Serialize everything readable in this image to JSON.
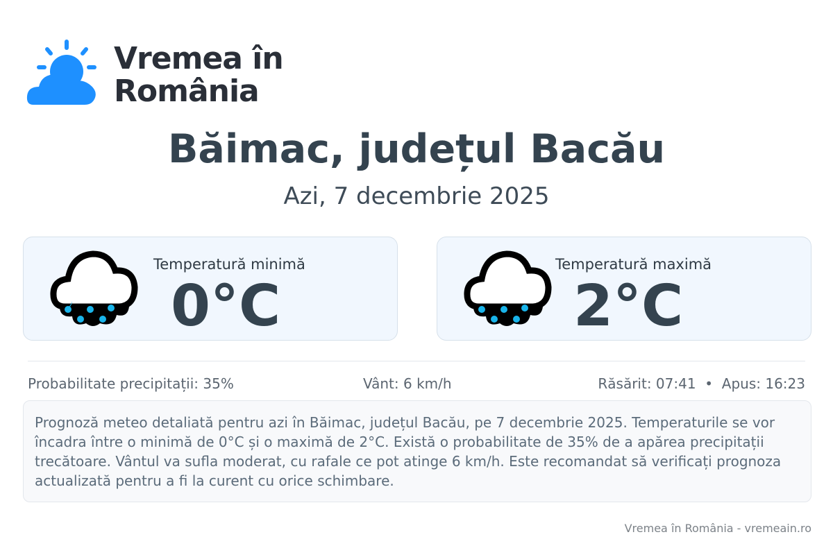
{
  "brand": {
    "name_line1": "Vremea în",
    "name_line2": "România",
    "accent": "#1e90ff"
  },
  "header": {
    "title": "Băimac, județul Bacău",
    "date": "Azi, 7 decembrie 2025"
  },
  "cards": [
    {
      "label": "Temperatură minimă",
      "value": "0°C",
      "icon": "cloud-rain-icon"
    },
    {
      "label": "Temperatură maximă",
      "value": "2°C",
      "icon": "cloud-rain-icon"
    }
  ],
  "stats": {
    "precip": "Probabilitate precipitații: 35%",
    "wind": "Vânt: 6 km/h",
    "sun": "Răsărit: 07:41  •  Apus: 16:23"
  },
  "description": "Prognoză meteo detaliată pentru azi în Băimac, județul Bacău, pe 7 decembrie 2025. Temperaturile se vor încadra între o minimă de 0°C și o maximă de 2°C. Există o probabilitate de 35% de a apărea precipitații trecătoare. Vântul va sufla moderat, cu rafale ce pot atinge 6 km/h. Este recomandat să verificați prognoza actualizată pentru a fi la curent cu orice schimbare.",
  "footer": "Vremea în România - vremeain.ro"
}
